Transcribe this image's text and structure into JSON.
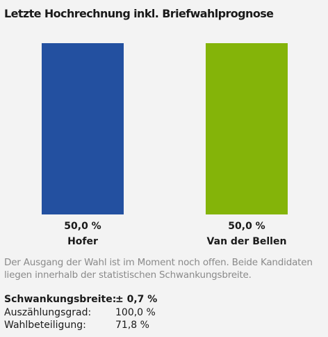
{
  "title": "Letzte Hochrechnung inkl. Briefwahlprognose",
  "chart_data": {
    "type": "bar",
    "categories": [
      "Hofer",
      "Van der Bellen"
    ],
    "values": [
      50.0,
      50.0
    ],
    "value_labels": [
      "50,0 %",
      "50,0 %"
    ],
    "colors": [
      "#2350a0",
      "#84b409"
    ],
    "ylim": [
      0,
      50
    ],
    "grid": false,
    "legend": "none"
  },
  "note": "Der Ausgang der Wahl ist im Moment noch offen. Beide Kandidaten liegen innerhalb der statistischen Schwankungsbreite.",
  "stats": [
    {
      "label": "Schwankungsbreite:",
      "value": "± 0,7 %"
    },
    {
      "label": "Auszählungsgrad:",
      "value": "100,0 %"
    },
    {
      "label": "Wahlbeteiligung:",
      "value": "71,8 %"
    }
  ]
}
